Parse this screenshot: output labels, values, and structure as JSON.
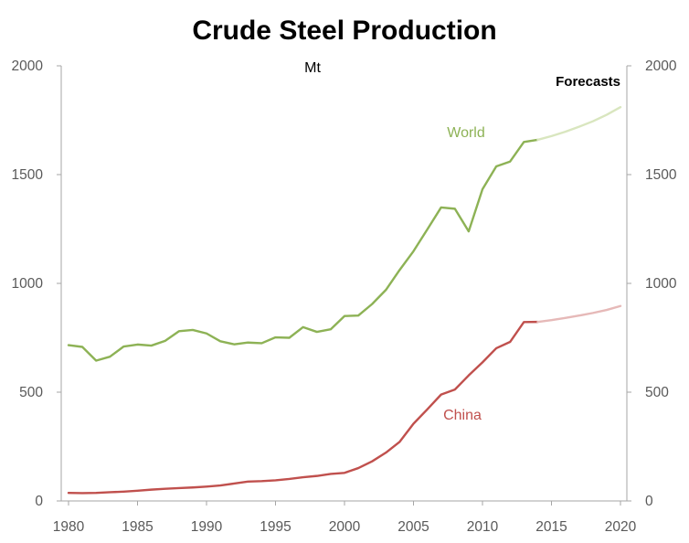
{
  "chart_data": {
    "type": "line",
    "title": "Crude Steel Production",
    "unit_label": "Mt",
    "forecast_label": "Forecasts",
    "xlim": [
      1980,
      2020
    ],
    "ylim": [
      0,
      2000
    ],
    "x_ticks": [
      "1980",
      "1985",
      "1990",
      "1995",
      "2000",
      "2005",
      "2010",
      "2015",
      "2020"
    ],
    "y_ticks_left": [
      "0",
      "500",
      "1000",
      "1500",
      "2000"
    ],
    "y_ticks_right": [
      "0",
      "500",
      "1000",
      "1500",
      "2000"
    ],
    "grid": false,
    "series": [
      {
        "name": "World",
        "color": "#8db255",
        "forecast_color": "#d9e6bf",
        "x": [
          1980,
          1981,
          1982,
          1983,
          1984,
          1985,
          1986,
          1987,
          1988,
          1989,
          1990,
          1991,
          1992,
          1993,
          1994,
          1995,
          1996,
          1997,
          1998,
          1999,
          2000,
          2001,
          2002,
          2003,
          2004,
          2005,
          2006,
          2007,
          2008,
          2009,
          2010,
          2011,
          2012,
          2013,
          2014
        ],
        "values": [
          716,
          708,
          645,
          663,
          710,
          719,
          714,
          736,
          780,
          786,
          770,
          734,
          720,
          728,
          725,
          752,
          750,
          799,
          777,
          789,
          850,
          852,
          905,
          970,
          1062,
          1148,
          1248,
          1349,
          1343,
          1239,
          1433,
          1538,
          1560,
          1650,
          1660
        ],
        "forecast_x": [
          2014,
          2015,
          2016,
          2017,
          2018,
          2019,
          2020
        ],
        "forecast_values": [
          1660,
          1677,
          1697,
          1720,
          1745,
          1775,
          1810
        ]
      },
      {
        "name": "China",
        "color": "#c0504d",
        "forecast_color": "#e6b9b8",
        "x": [
          1980,
          1981,
          1982,
          1983,
          1984,
          1985,
          1986,
          1987,
          1988,
          1989,
          1990,
          1991,
          1992,
          1993,
          1994,
          1995,
          1996,
          1997,
          1998,
          1999,
          2000,
          2001,
          2002,
          2003,
          2004,
          2005,
          2006,
          2007,
          2008,
          2009,
          2010,
          2011,
          2012,
          2013,
          2014
        ],
        "values": [
          37,
          36,
          37,
          40,
          43,
          47,
          52,
          56,
          59,
          62,
          66,
          71,
          80,
          89,
          91,
          95,
          101,
          109,
          115,
          124,
          129,
          151,
          182,
          222,
          272,
          355,
          421,
          489,
          512,
          577,
          637,
          702,
          731,
          822,
          823
        ],
        "forecast_x": [
          2014,
          2015,
          2016,
          2017,
          2018,
          2019,
          2020
        ],
        "forecast_values": [
          823,
          831,
          841,
          852,
          864,
          878,
          896
        ]
      }
    ]
  }
}
